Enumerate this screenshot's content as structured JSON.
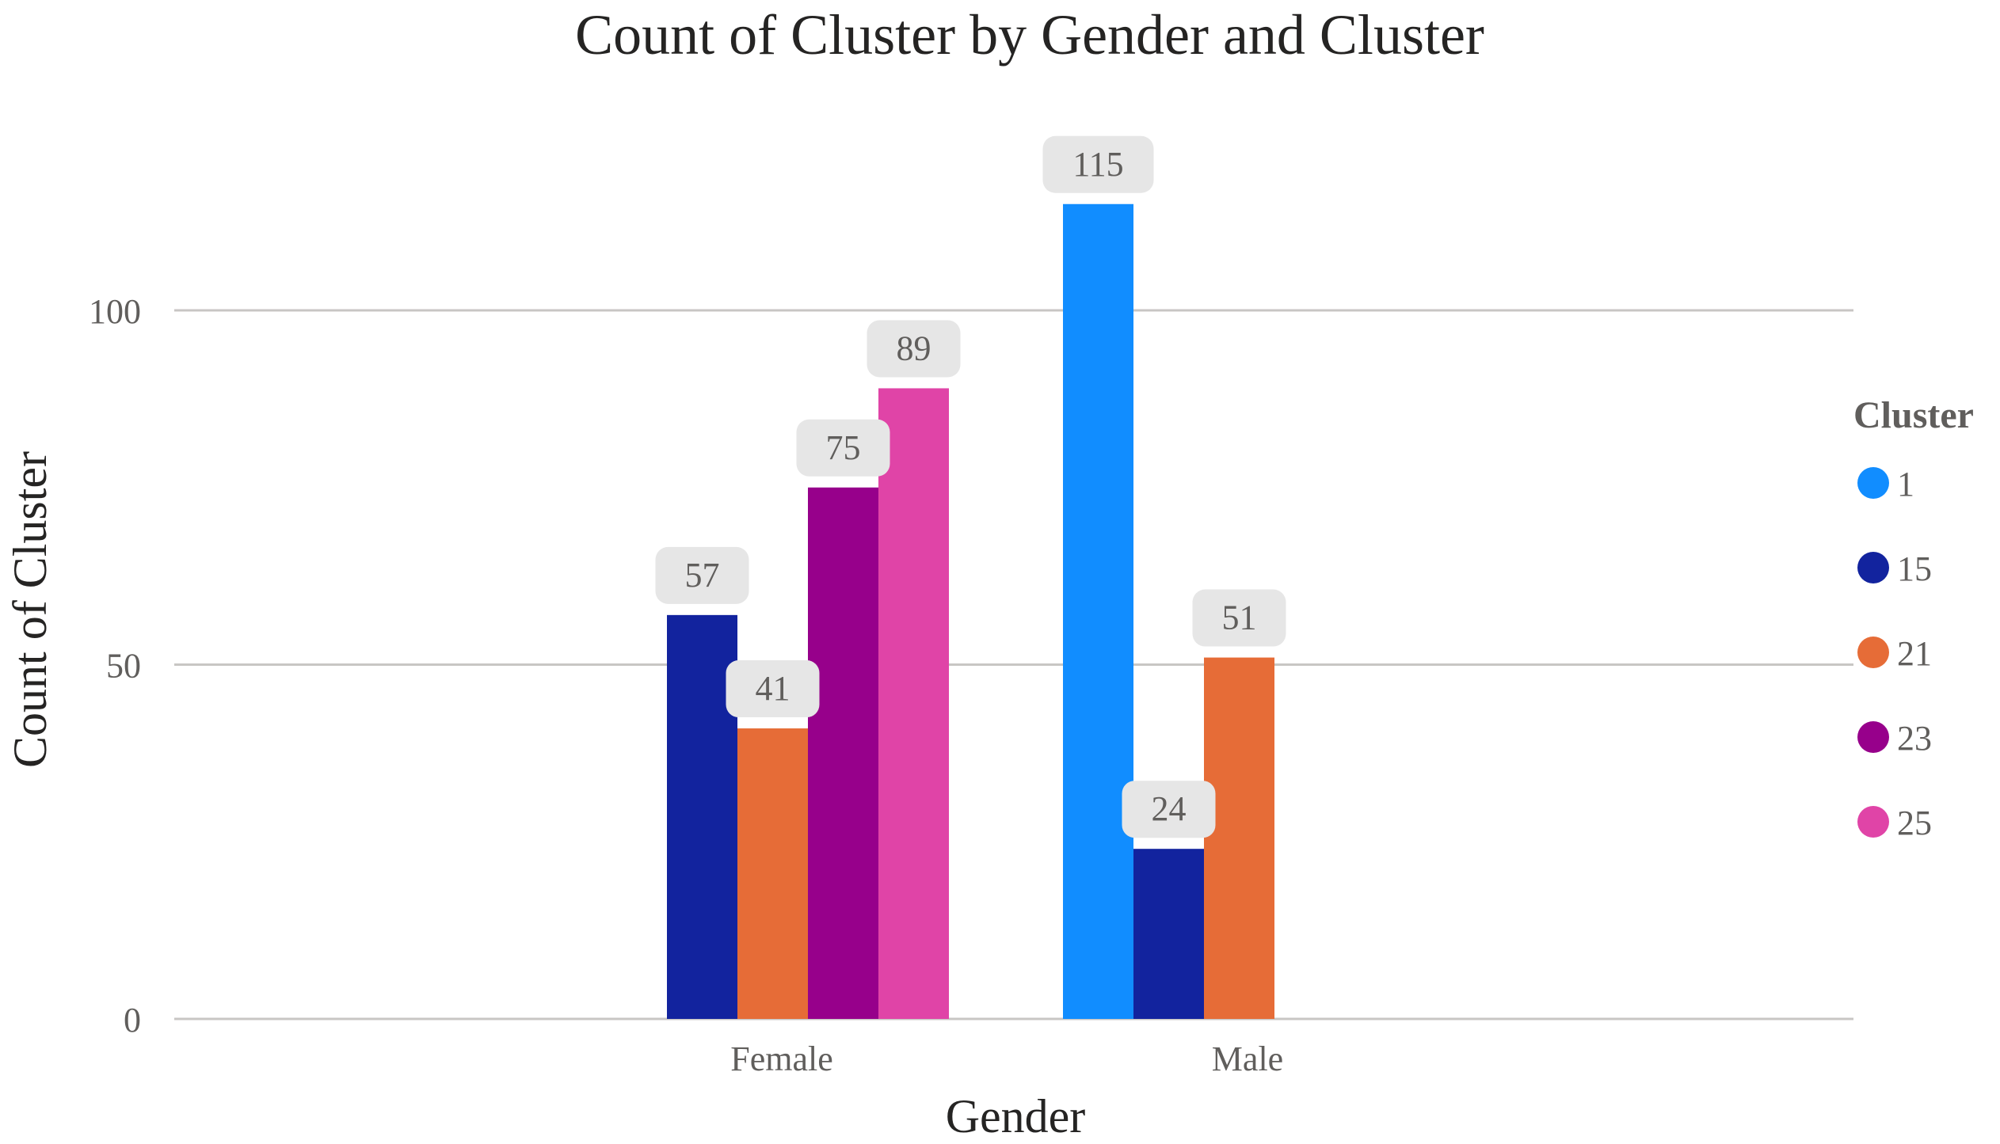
{
  "chart_data": {
    "type": "bar",
    "title": "Count of Cluster by Gender and Cluster",
    "xlabel": "Gender",
    "ylabel": "Count of Cluster",
    "categories": [
      "Female",
      "Male"
    ],
    "ylim": [
      0,
      115
    ],
    "yticks": [
      0,
      50,
      100
    ],
    "ytick_labels": [
      "0",
      "50",
      "100"
    ],
    "grid": true,
    "legend_title": "Cluster",
    "legend_position": "right",
    "series": [
      {
        "name": "1",
        "color": "#118DFF",
        "values": [
          null,
          115
        ]
      },
      {
        "name": "15",
        "color": "#12239E",
        "values": [
          57,
          24
        ]
      },
      {
        "name": "21",
        "color": "#E66C37",
        "values": [
          41,
          51
        ]
      },
      {
        "name": "23",
        "color": "#97008B",
        "values": [
          75,
          null
        ]
      },
      {
        "name": "25",
        "color": "#E044A7",
        "values": [
          89,
          null
        ]
      }
    ]
  }
}
